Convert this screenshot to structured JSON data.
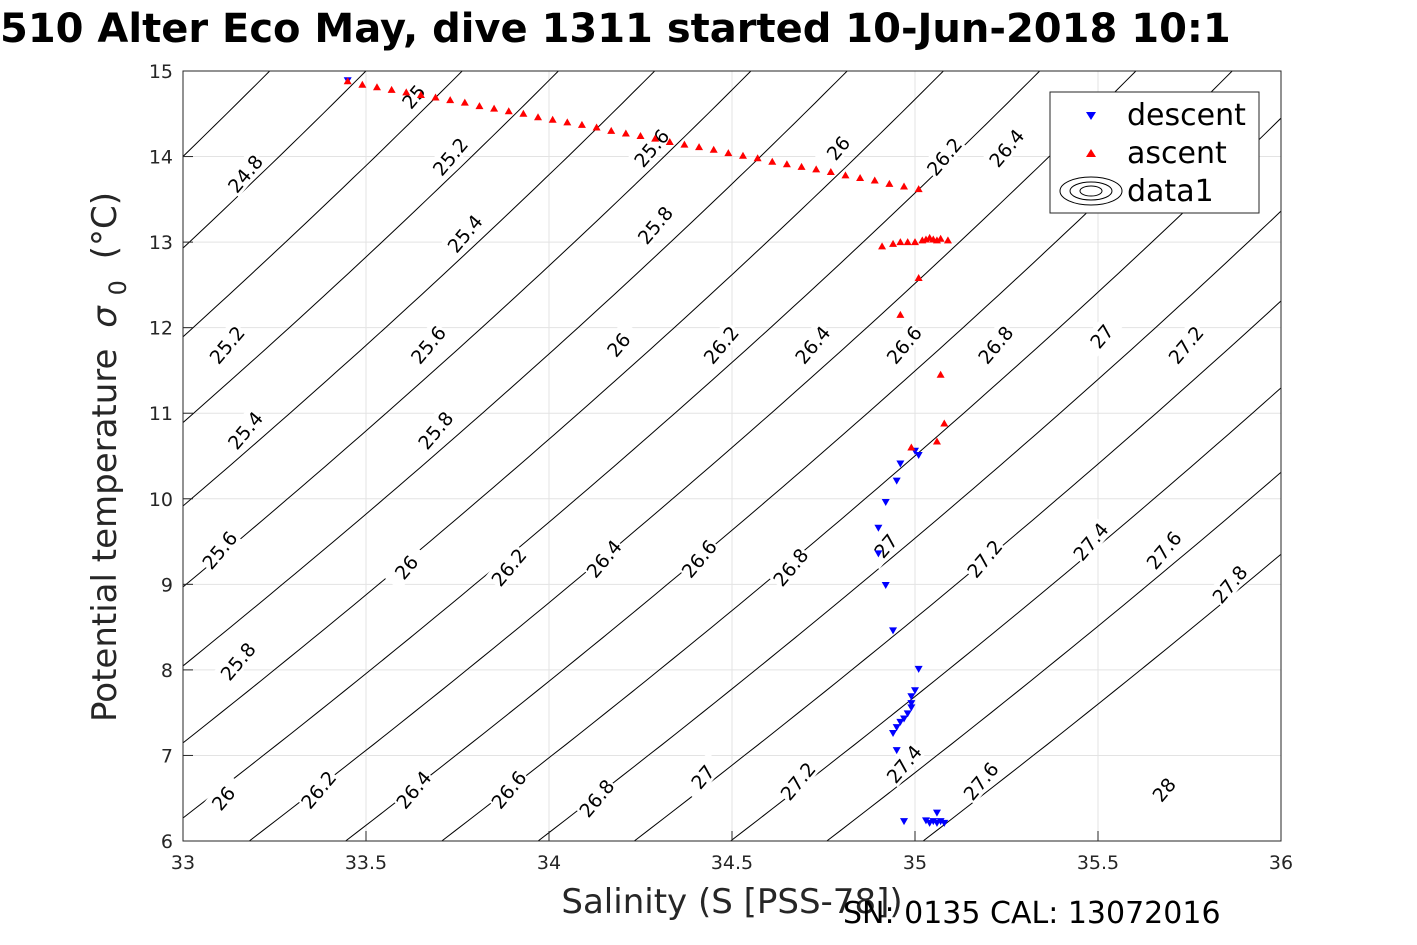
{
  "chart_data": {
    "type": "scatter",
    "title": "510 Alter Eco May, dive 1311 started 10-Jun-2018 10:1",
    "xlabel": "Salinity (S [PSS-78])",
    "ylabel_main": "Potential temperature",
    "ylabel_sigma": "σ",
    "ylabel_subscript": "0",
    "ylabel_unit": "(°C)",
    "footer": "SN: 0135  CAL: 13072016",
    "xlim": [
      33,
      36
    ],
    "ylim": [
      6,
      15
    ],
    "xticks": [
      "33",
      "33.5",
      "34",
      "34.5",
      "35",
      "35.5",
      "36"
    ],
    "yticks": [
      "6",
      "7",
      "8",
      "9",
      "10",
      "11",
      "12",
      "13",
      "14",
      "15"
    ],
    "grid": true,
    "legend_position": "top-right",
    "legend": [
      {
        "label": "descent",
        "marker": "triangle-down",
        "color": "#0000ff"
      },
      {
        "label": "ascent",
        "marker": "triangle-up",
        "color": "#ff0000"
      },
      {
        "label": "data1",
        "marker": "contour",
        "color": "#000000"
      }
    ],
    "contour_line_color": "#000000",
    "contour_levels": [
      24.8,
      25,
      25.2,
      25.4,
      25.6,
      25.8,
      26,
      26.2,
      26.4,
      26.6,
      26.8,
      27,
      27.2,
      27.4,
      27.6,
      27.8,
      28
    ],
    "contour_labels": [
      {
        "text": "24.8",
        "s": 33.17,
        "t": 13.8
      },
      {
        "text": "25",
        "s": 33.63,
        "t": 14.7
      },
      {
        "text": "25.2",
        "s": 33.73,
        "t": 14.0
      },
      {
        "text": "25.6",
        "s": 34.28,
        "t": 14.1
      },
      {
        "text": "26",
        "s": 34.79,
        "t": 14.1
      },
      {
        "text": "26.2",
        "s": 35.08,
        "t": 14.0
      },
      {
        "text": "26.4",
        "s": 35.25,
        "t": 14.1
      },
      {
        "text": "25.4",
        "s": 33.77,
        "t": 13.1
      },
      {
        "text": "25.8",
        "s": 34.29,
        "t": 13.2
      },
      {
        "text": "25.2",
        "s": 33.12,
        "t": 11.8
      },
      {
        "text": "25.6",
        "s": 33.67,
        "t": 11.8
      },
      {
        "text": "26",
        "s": 34.19,
        "t": 11.8
      },
      {
        "text": "26.2",
        "s": 34.47,
        "t": 11.8
      },
      {
        "text": "26.4",
        "s": 34.72,
        "t": 11.8
      },
      {
        "text": "26.6",
        "s": 34.97,
        "t": 11.8
      },
      {
        "text": "26.8",
        "s": 35.22,
        "t": 11.8
      },
      {
        "text": "27",
        "s": 35.51,
        "t": 11.9
      },
      {
        "text": "27.2",
        "s": 35.74,
        "t": 11.8
      },
      {
        "text": "25.4",
        "s": 33.17,
        "t": 10.8
      },
      {
        "text": "25.8",
        "s": 33.69,
        "t": 10.8
      },
      {
        "text": "25.6",
        "s": 33.1,
        "t": 9.4
      },
      {
        "text": "26",
        "s": 33.61,
        "t": 9.2
      },
      {
        "text": "26.2",
        "s": 33.89,
        "t": 9.2
      },
      {
        "text": "26.4",
        "s": 34.15,
        "t": 9.3
      },
      {
        "text": "26.6",
        "s": 34.41,
        "t": 9.3
      },
      {
        "text": "26.8",
        "s": 34.66,
        "t": 9.2
      },
      {
        "text": "27",
        "s": 34.92,
        "t": 9.45
      },
      {
        "text": "27.2",
        "s": 35.19,
        "t": 9.3
      },
      {
        "text": "27.4",
        "s": 35.48,
        "t": 9.5
      },
      {
        "text": "27.6",
        "s": 35.68,
        "t": 9.4
      },
      {
        "text": "27.8",
        "s": 35.86,
        "t": 9.0
      },
      {
        "text": "25.8",
        "s": 33.15,
        "t": 8.1
      },
      {
        "text": "26",
        "s": 33.11,
        "t": 6.5
      },
      {
        "text": "26.2",
        "s": 33.37,
        "t": 6.6
      },
      {
        "text": "26.4",
        "s": 33.63,
        "t": 6.6
      },
      {
        "text": "26.6",
        "s": 33.89,
        "t": 6.6
      },
      {
        "text": "26.8",
        "s": 34.13,
        "t": 6.5
      },
      {
        "text": "27",
        "s": 34.42,
        "t": 6.75
      },
      {
        "text": "27.2",
        "s": 34.68,
        "t": 6.7
      },
      {
        "text": "27.4",
        "s": 34.97,
        "t": 6.9
      },
      {
        "text": "27.6",
        "s": 35.18,
        "t": 6.7
      },
      {
        "text": "28",
        "s": 35.68,
        "t": 6.6
      }
    ],
    "series": [
      {
        "name": "descent",
        "marker": "triangle-down",
        "color": "#0000ff",
        "points": [
          [
            33.45,
            14.88
          ],
          [
            35.0,
            10.55
          ],
          [
            35.01,
            10.5
          ],
          [
            34.96,
            10.4
          ],
          [
            34.95,
            10.2
          ],
          [
            34.92,
            9.95
          ],
          [
            34.9,
            9.65
          ],
          [
            34.9,
            9.35
          ],
          [
            34.92,
            8.98
          ],
          [
            34.94,
            8.45
          ],
          [
            35.01,
            8.0
          ],
          [
            35.0,
            7.75
          ],
          [
            34.99,
            7.68
          ],
          [
            34.99,
            7.6
          ],
          [
            34.99,
            7.55
          ],
          [
            34.98,
            7.48
          ],
          [
            34.97,
            7.42
          ],
          [
            34.96,
            7.38
          ],
          [
            34.95,
            7.32
          ],
          [
            34.94,
            7.25
          ],
          [
            34.95,
            7.05
          ],
          [
            34.97,
            6.22
          ],
          [
            35.03,
            6.23
          ],
          [
            35.04,
            6.2
          ],
          [
            35.05,
            6.22
          ],
          [
            35.06,
            6.2
          ],
          [
            35.07,
            6.22
          ],
          [
            35.08,
            6.2
          ],
          [
            35.06,
            6.32
          ]
        ]
      },
      {
        "name": "ascent",
        "marker": "triangle-up",
        "color": "#ff0000",
        "points": [
          [
            33.45,
            14.88
          ],
          [
            33.49,
            14.84
          ],
          [
            33.53,
            14.81
          ],
          [
            33.57,
            14.78
          ],
          [
            33.61,
            14.75
          ],
          [
            33.65,
            14.72
          ],
          [
            33.69,
            14.69
          ],
          [
            33.73,
            14.66
          ],
          [
            33.77,
            14.63
          ],
          [
            33.81,
            14.59
          ],
          [
            33.85,
            14.56
          ],
          [
            33.89,
            14.53
          ],
          [
            33.93,
            14.5
          ],
          [
            33.97,
            14.46
          ],
          [
            34.01,
            14.43
          ],
          [
            34.05,
            14.4
          ],
          [
            34.09,
            14.37
          ],
          [
            34.13,
            14.34
          ],
          [
            34.17,
            14.3
          ],
          [
            34.21,
            14.27
          ],
          [
            34.25,
            14.24
          ],
          [
            34.29,
            14.21
          ],
          [
            34.33,
            14.17
          ],
          [
            34.37,
            14.14
          ],
          [
            34.41,
            14.11
          ],
          [
            34.45,
            14.08
          ],
          [
            34.49,
            14.04
          ],
          [
            34.53,
            14.01
          ],
          [
            34.57,
            13.98
          ],
          [
            34.61,
            13.94
          ],
          [
            34.65,
            13.91
          ],
          [
            34.69,
            13.88
          ],
          [
            34.73,
            13.85
          ],
          [
            34.77,
            13.82
          ],
          [
            34.81,
            13.78
          ],
          [
            34.85,
            13.75
          ],
          [
            34.89,
            13.72
          ],
          [
            34.93,
            13.68
          ],
          [
            34.97,
            13.65
          ],
          [
            35.01,
            13.62
          ],
          [
            34.91,
            12.95
          ],
          [
            34.94,
            12.98
          ],
          [
            34.96,
            13.0
          ],
          [
            34.98,
            13.0
          ],
          [
            35.0,
            13.0
          ],
          [
            35.02,
            13.02
          ],
          [
            35.03,
            13.03
          ],
          [
            35.04,
            13.05
          ],
          [
            35.05,
            13.03
          ],
          [
            35.06,
            13.02
          ],
          [
            35.07,
            13.04
          ],
          [
            35.09,
            13.02
          ],
          [
            35.01,
            12.58
          ],
          [
            34.96,
            12.15
          ],
          [
            35.07,
            11.45
          ],
          [
            35.08,
            10.88
          ],
          [
            35.06,
            10.67
          ],
          [
            34.99,
            10.6
          ]
        ]
      }
    ]
  }
}
